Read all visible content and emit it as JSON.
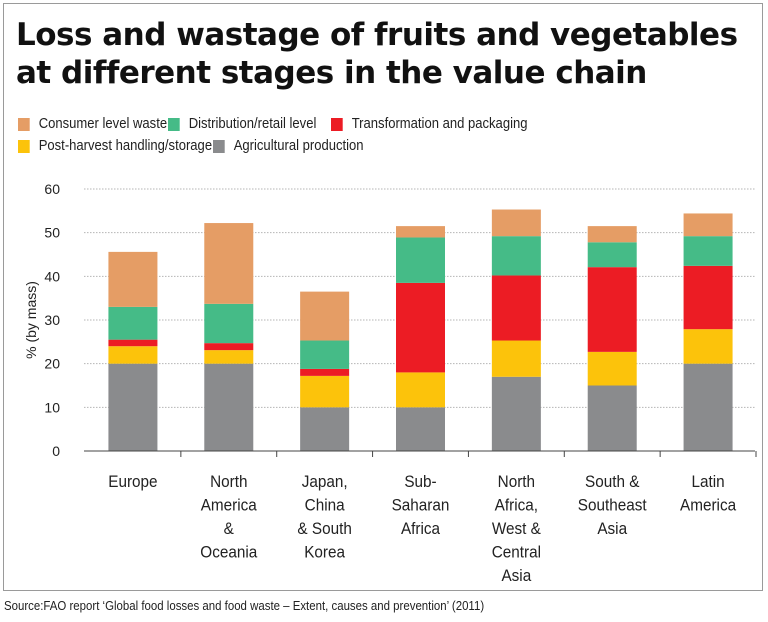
{
  "title": "Loss and wastage of fruits and vegetables at different stages in the value chain",
  "source": "Source:FAO report ‘Global food losses and food waste – Extent, causes and prevention’ (2011)",
  "chart_data": {
    "type": "bar",
    "stacked": true,
    "title": "Loss and wastage of fruits and vegetables at different stages in the value chain",
    "ylabel": "% (by mass)",
    "xlabel": "",
    "ylim": [
      0,
      60
    ],
    "yticks": [
      0,
      10,
      20,
      30,
      40,
      50,
      60
    ],
    "grid": true,
    "legend_position": "top",
    "categories": [
      "Europe",
      "North America & Oceania",
      "Japan, China & South Korea",
      "Sub-Saharan Africa",
      "North Africa, West & Central Asia",
      "South & Southeast Asia",
      "Latin America"
    ],
    "category_lines": [
      [
        "Europe"
      ],
      [
        "North",
        "America",
        "&",
        "Oceania"
      ],
      [
        "Japan,",
        "China",
        "& South",
        "Korea"
      ],
      [
        "Sub-",
        "Saharan",
        "Africa"
      ],
      [
        "North",
        "Africa,",
        "West &",
        "Central",
        "Asia"
      ],
      [
        "South &",
        "Southeast",
        "Asia"
      ],
      [
        "Latin",
        "America"
      ]
    ],
    "series": [
      {
        "name": "Agricultural production",
        "color": "#8a8b8d",
        "values": [
          20,
          20,
          10,
          10,
          17,
          15,
          20
        ]
      },
      {
        "name": "Post-harvest handling/storage",
        "color": "#fcc30b",
        "values": [
          4,
          3.1,
          7.2,
          8,
          8.3,
          7.7,
          7.9
        ]
      },
      {
        "name": "Transformation and packaging",
        "color": "#ec1c24",
        "values": [
          1.5,
          1.6,
          1.6,
          20.5,
          14.9,
          19.4,
          14.5
        ]
      },
      {
        "name": "Distribution/retail level",
        "color": "#45bb87",
        "values": [
          7.5,
          9,
          6.5,
          10.4,
          9,
          5.7,
          6.8
        ]
      },
      {
        "name": "Consumer level waste",
        "color": "#e59d65",
        "values": [
          12.6,
          18.5,
          11.2,
          2.6,
          6.1,
          3.7,
          5.2
        ]
      }
    ],
    "legend_order": [
      "Consumer level waste",
      "Distribution/retail level",
      "Transformation and packaging",
      "Post-harvest handling/storage",
      "Agricultural production"
    ]
  }
}
